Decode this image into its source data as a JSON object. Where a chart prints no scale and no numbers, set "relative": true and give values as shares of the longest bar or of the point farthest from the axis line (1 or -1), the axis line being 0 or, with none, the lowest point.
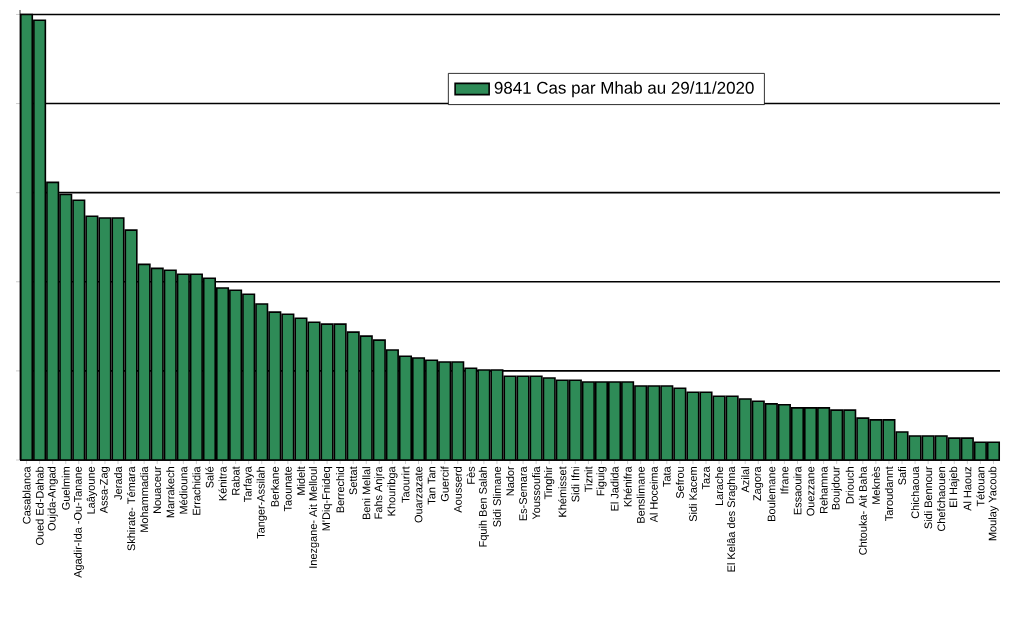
{
  "chart_data": {
    "type": "bar",
    "relative": true,
    "grid": "y",
    "legend": "top right",
    "categories": [
      "Casablanca",
      "Oued Ed-Dahab",
      "Oujda-Angad",
      "Guelmim",
      "Agadir-Ida -Ou-Tanane",
      "Laâyoune",
      "Assa-Zag",
      "Jerada",
      "Skhirate- Témara",
      "Mohammadia",
      "Nouaceur",
      "Marrakech",
      "Médiouna",
      "Errachidia",
      "Salé",
      "Kénitra",
      "Rabat",
      "Tarfaya",
      "Tanger-Assilah",
      "Berkane",
      "Taounate",
      "Midelt",
      "Inezgane- Ait Melloul",
      "M'Diq-Fnideq",
      "Berrechid",
      "Settat",
      "Beni Mellal",
      "Fahs Anjra",
      "Khouribga",
      "Taourirt",
      "Ouarzazate",
      "Tan Tan",
      "Guercif",
      "Aousserd",
      "Fès",
      "Fquih Ben Salah",
      "Sidi Slimane",
      "Nador",
      "Es-Semara",
      "Youssoufia",
      "Tinghir",
      "Khémisset",
      "Sidi Ifni",
      "Tiznit",
      "Figuig",
      "El Jadida",
      "Khénifra",
      "Benslimane",
      "Al Hoceima",
      "Tata",
      "Sefrou",
      "Sidi Kacem",
      "Taza",
      "Larache",
      "El Kelâa des Sraghna",
      "Azilal",
      "Zagora",
      "Boulemane",
      "Ifrane",
      "Essaouira",
      "Ouezzane",
      "Rehamna",
      "Boujdour",
      "Driouch",
      "Chtouka- Ait Baha",
      "Meknès",
      "Taroudannt",
      "Safi",
      "Chichaoua",
      "Sidi Bennour",
      "Chefchaouen",
      "El Hajeb",
      "Al Haouz",
      "Tétouan",
      "Moulay Yacoub"
    ],
    "series": [
      {
        "name": "9841 Cas par Mhab au 29/11/2020",
        "color": "#2e8b57",
        "values": [
          1.0,
          0.987,
          0.623,
          0.596,
          0.583,
          0.547,
          0.543,
          0.543,
          0.516,
          0.439,
          0.43,
          0.426,
          0.417,
          0.417,
          0.408,
          0.386,
          0.381,
          0.372,
          0.35,
          0.332,
          0.327,
          0.318,
          0.309,
          0.305,
          0.305,
          0.287,
          0.278,
          0.269,
          0.247,
          0.233,
          0.229,
          0.224,
          0.22,
          0.22,
          0.206,
          0.202,
          0.202,
          0.188,
          0.188,
          0.188,
          0.184,
          0.179,
          0.179,
          0.175,
          0.175,
          0.175,
          0.175,
          0.166,
          0.166,
          0.166,
          0.161,
          0.152,
          0.152,
          0.143,
          0.143,
          0.137,
          0.132,
          0.126,
          0.124,
          0.117,
          0.117,
          0.117,
          0.112,
          0.112,
          0.094,
          0.09,
          0.09,
          0.063,
          0.054,
          0.054,
          0.054,
          0.049,
          0.049,
          0.04,
          0.04
        ]
      }
    ]
  }
}
